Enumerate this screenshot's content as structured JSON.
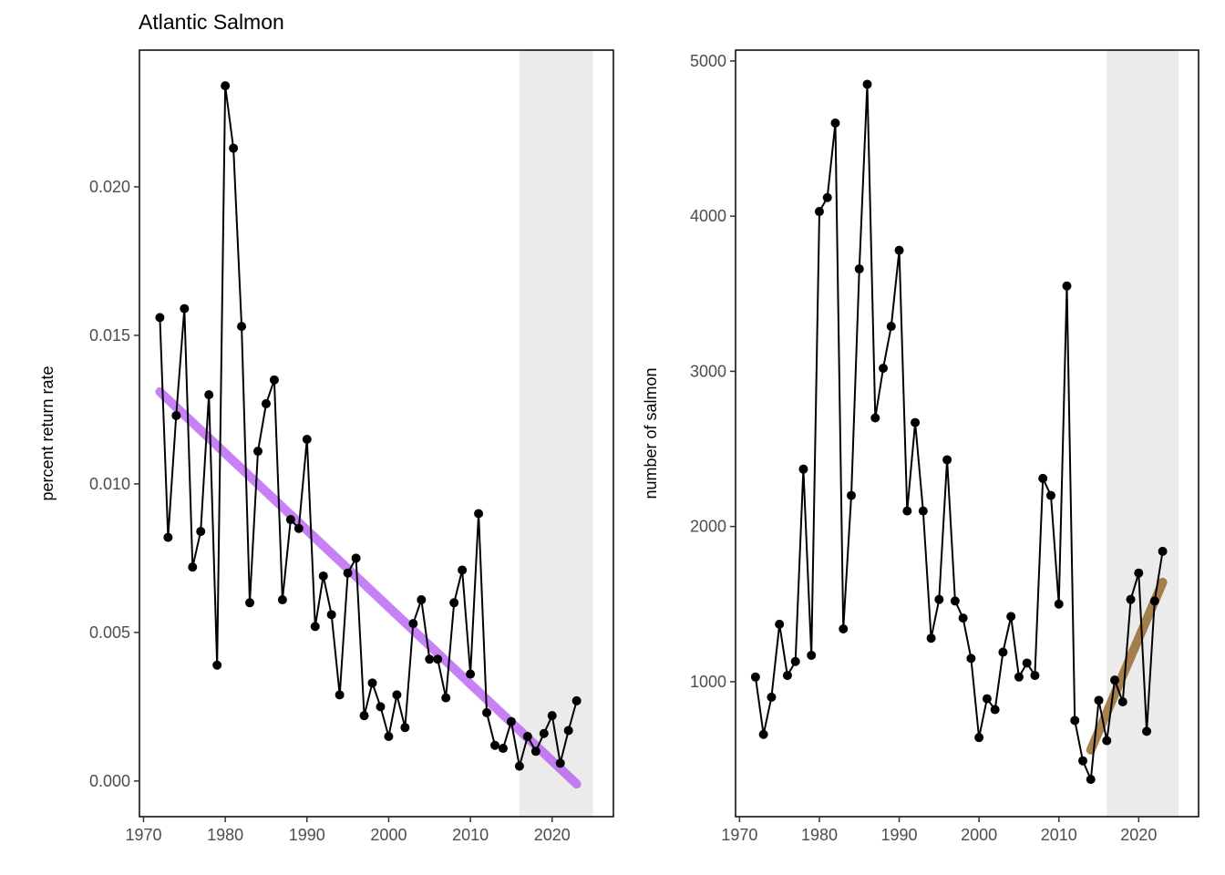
{
  "figure": {
    "title": "Atlantic Salmon"
  },
  "colors": {
    "line": "#000000",
    "trend_left": "#b14cf0",
    "trend_right": "#8b5a14",
    "shade": "#ebebeb",
    "axis_text": "#4d4d4d"
  },
  "chart_data": [
    {
      "type": "line",
      "title": "Atlantic Salmon",
      "xlabel": "",
      "ylabel": "percent return rate",
      "xlim": [
        1969.5,
        2027.5
      ],
      "ylim": [
        -0.0012,
        0.0246
      ],
      "x_ticks": [
        1970,
        1980,
        1990,
        2000,
        2010,
        2020
      ],
      "y_ticks": [
        0.0,
        0.005,
        0.01,
        0.015,
        0.02
      ],
      "y_tick_labels": [
        "0.000",
        "0.005",
        "0.010",
        "0.015",
        "0.020"
      ],
      "grid": false,
      "shaded_region": {
        "x": [
          2016,
          2025
        ]
      },
      "x": [
        1972,
        1973,
        1974,
        1975,
        1976,
        1977,
        1978,
        1979,
        1980,
        1981,
        1982,
        1983,
        1984,
        1985,
        1986,
        1987,
        1988,
        1989,
        1990,
        1991,
        1992,
        1993,
        1994,
        1995,
        1996,
        1997,
        1998,
        1999,
        2000,
        2001,
        2002,
        2003,
        2004,
        2005,
        2006,
        2007,
        2008,
        2009,
        2010,
        2011,
        2012,
        2013,
        2014,
        2015,
        2016,
        2017,
        2018,
        2019,
        2020,
        2021,
        2022,
        2023
      ],
      "series": [
        {
          "values": [
            0.0156,
            0.0082,
            0.0123,
            0.0159,
            0.0072,
            0.0084,
            0.013,
            0.0039,
            0.0234,
            0.0213,
            0.0153,
            0.006,
            0.0111,
            0.0127,
            0.0135,
            0.0061,
            0.0088,
            0.0085,
            0.0115,
            0.0052,
            0.0069,
            0.0056,
            0.0029,
            0.007,
            0.0075,
            0.0022,
            0.0033,
            0.0025,
            0.0015,
            0.0029,
            0.0018,
            0.0053,
            0.0061,
            0.0041,
            0.0041,
            0.0028,
            0.006,
            0.0071,
            0.0036,
            0.009,
            0.0023,
            0.0012,
            0.0011,
            0.002,
            0.0005,
            0.0015,
            0.001,
            0.0016,
            0.0022,
            0.0006,
            0.0017,
            0.0027
          ]
        }
      ],
      "trend": {
        "x": [
          1972,
          2023
        ],
        "y": [
          0.0131,
          -0.0001
        ]
      }
    },
    {
      "type": "line",
      "title": "",
      "xlabel": "",
      "ylabel": "number of salmon",
      "xlim": [
        1969.5,
        2027.5
      ],
      "ylim": [
        130,
        5070
      ],
      "x_ticks": [
        1970,
        1980,
        1990,
        2000,
        2010,
        2020
      ],
      "y_ticks": [
        1000,
        2000,
        3000,
        4000,
        5000
      ],
      "y_tick_labels": [
        "1000",
        "2000",
        "3000",
        "4000",
        "5000"
      ],
      "grid": false,
      "shaded_region": {
        "x": [
          2016,
          2025
        ]
      },
      "x": [
        1972,
        1973,
        1974,
        1975,
        1976,
        1977,
        1978,
        1979,
        1980,
        1981,
        1982,
        1983,
        1984,
        1985,
        1986,
        1987,
        1988,
        1989,
        1990,
        1991,
        1992,
        1993,
        1994,
        1995,
        1996,
        1997,
        1998,
        1999,
        2000,
        2001,
        2002,
        2003,
        2004,
        2005,
        2006,
        2007,
        2008,
        2009,
        2010,
        2011,
        2012,
        2013,
        2014,
        2015,
        2016,
        2017,
        2018,
        2019,
        2020,
        2021,
        2022,
        2023
      ],
      "series": [
        {
          "values": [
            1030,
            660,
            900,
            1370,
            1040,
            1130,
            2370,
            1170,
            4030,
            4120,
            4600,
            1340,
            2200,
            3660,
            4850,
            2700,
            3020,
            3290,
            3780,
            2100,
            2670,
            2100,
            1280,
            1530,
            2430,
            1520,
            1410,
            1150,
            640,
            890,
            820,
            1190,
            1420,
            1030,
            1120,
            1040,
            2310,
            2200,
            1500,
            3550,
            750,
            490,
            370,
            880,
            620,
            1010,
            870,
            1530,
            1700,
            680,
            1520,
            1840
          ]
        }
      ],
      "trend": {
        "x": [
          2014,
          2023
        ],
        "y": [
          560,
          1640
        ]
      }
    }
  ]
}
